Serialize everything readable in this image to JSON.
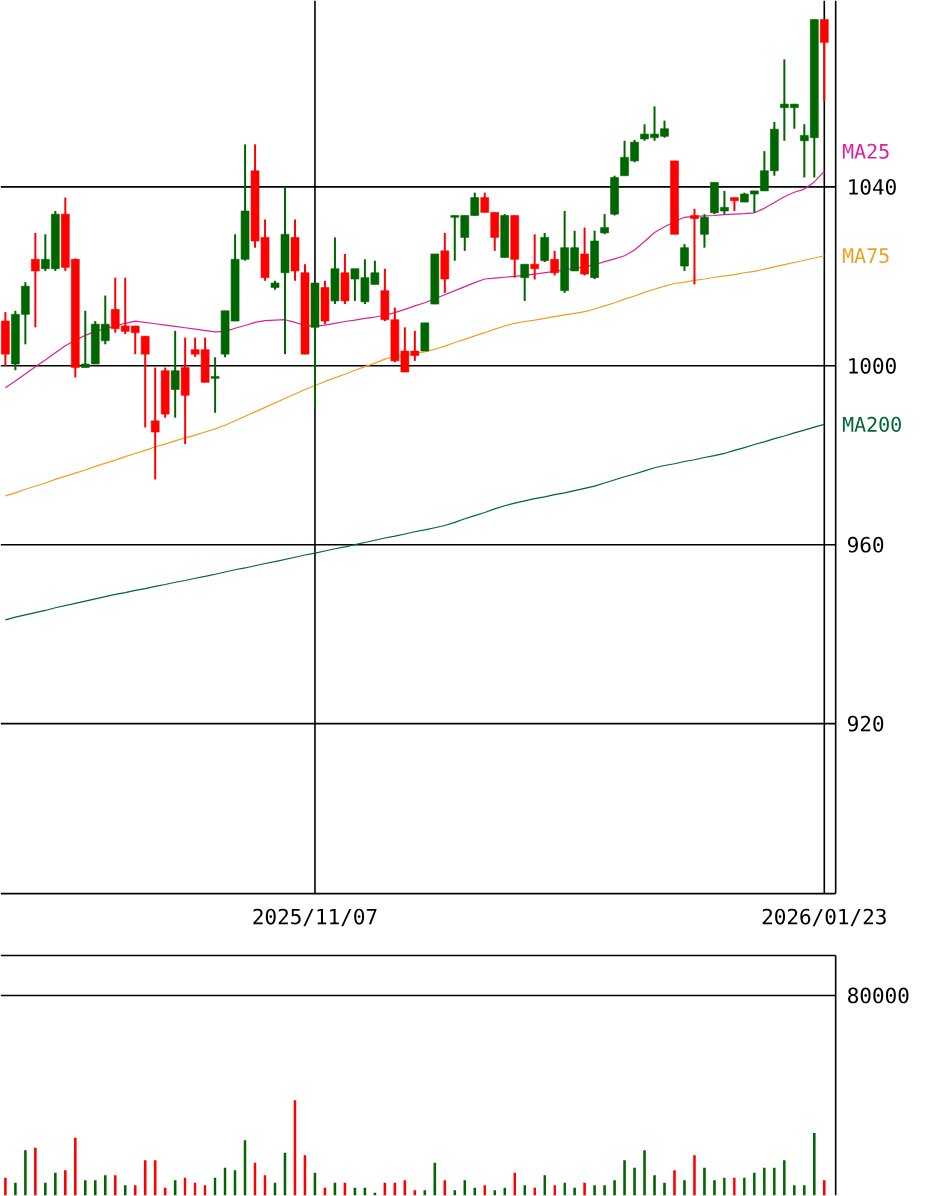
{
  "chart_data": [
    {
      "type": "candlestick",
      "categories": [
        null,
        null,
        null,
        null,
        null,
        null,
        null,
        null,
        null,
        null,
        null,
        null,
        null,
        null,
        null,
        null,
        null,
        null,
        null,
        null,
        null,
        null,
        null,
        null,
        null,
        null,
        null,
        null,
        null,
        null,
        null,
        "2025/11/07",
        null,
        null,
        null,
        null,
        null,
        null,
        null,
        null,
        null,
        null,
        null,
        null,
        null,
        null,
        null,
        null,
        null,
        null,
        null,
        null,
        null,
        null,
        null,
        null,
        null,
        null,
        null,
        null,
        null,
        null,
        null,
        null,
        null,
        null,
        null,
        null,
        null,
        null,
        null,
        null,
        null,
        null,
        null,
        null,
        null,
        null,
        null,
        null,
        null,
        null,
        "2026/01/23"
      ],
      "ohlc": [
        [
          1010,
          1012,
          1000,
          1002.6
        ],
        [
          1000.4,
          1012.3,
          999,
          1011.5
        ],
        [
          1011.5,
          1018.7,
          1004.8,
          1017.8
        ],
        [
          1023.8,
          1029.7,
          1008.6,
          1021.2
        ],
        [
          1021.7,
          1029.4,
          1021.2,
          1023.8
        ],
        [
          1021.7,
          1034.6,
          1021.2,
          1033.9
        ],
        [
          1033.9,
          1037.6,
          1021.2,
          1022
        ],
        [
          1023.8,
          1024,
          997.4,
          999.6
        ],
        [
          999.6,
          1012.3,
          999.6,
          1000.4
        ],
        [
          1000.4,
          1010,
          1000.4,
          1009.3
        ],
        [
          1005.6,
          1015.7,
          1004.8,
          1009.3
        ],
        [
          1012.6,
          1019.7,
          1007.4,
          1008.3
        ],
        [
          1008.9,
          1019.7,
          1007.1,
          1007.7
        ],
        [
          1008.9,
          1008.9,
          1002.6,
          1007.4
        ],
        [
          1006.6,
          1006.6,
          986.2,
          1002.6
        ],
        [
          987.7,
          999.6,
          974.6,
          985.2
        ],
        [
          998.9,
          999.6,
          988.4,
          989.2
        ],
        [
          994.7,
          1007.8,
          988.4,
          998.9
        ],
        [
          999.6,
          1006.3,
          982.5,
          993.4
        ],
        [
          1003.6,
          1006.3,
          1002,
          1002.6
        ],
        [
          1003.6,
          1006.3,
          996.3,
          996.3
        ],
        [
          997.2,
          1001.9,
          989.5,
          997.6
        ],
        [
          1002.6,
          1012.3,
          1001.9,
          1012.3
        ],
        [
          1010,
          1029.4,
          1010,
          1023.8
        ],
        [
          1023.8,
          1049.5,
          1023.5,
          1034.6
        ],
        [
          1043.6,
          1049.5,
          1026.4,
          1027.9
        ],
        [
          1028.7,
          1032.7,
          1019,
          1019.7
        ],
        [
          1017.5,
          1019,
          1017,
          1018.5
        ],
        [
          1020.8,
          1039.9,
          1002.6,
          1029.4
        ],
        [
          1028.7,
          1032.7,
          1019,
          1021.2
        ],
        [
          1020.8,
          1022.7,
          1002.6,
          1002.6
        ],
        [
          1008.6,
          1018.5,
          990.7,
          1018.5
        ],
        [
          1017.5,
          1019,
          1009.3,
          1010
        ],
        [
          1014.5,
          1028.7,
          1013.8,
          1021.7
        ],
        [
          1020.8,
          1025,
          1013.8,
          1014.5
        ],
        [
          1019.4,
          1021.7,
          1014.5,
          1021.7
        ],
        [
          1014.3,
          1023.8,
          1013.8,
          1019.7
        ],
        [
          1018.2,
          1023.5,
          1018.2,
          1020.8
        ],
        [
          1016.8,
          1021.7,
          1010,
          1010.3
        ],
        [
          1010.3,
          1013,
          1000.8,
          1001.1
        ],
        [
          1003.3,
          1008.6,
          998.6,
          998.6
        ],
        [
          1003.3,
          1007.8,
          1001.1,
          1002.3
        ],
        [
          1003.3,
          1009.6,
          1003.3,
          1009.6
        ],
        [
          1013.8,
          1025,
          1013.8,
          1025
        ],
        [
          1025.7,
          1029.7,
          1016.3,
          1019.4
        ],
        [
          1033.2,
          1033.6,
          1023.5,
          1033.6
        ],
        [
          1028.7,
          1033.6,
          1025.7,
          1033.6
        ],
        [
          1033.6,
          1038.7,
          1033.6,
          1037.6
        ],
        [
          1037.6,
          1038.7,
          1034.3,
          1034.3
        ],
        [
          1034.3,
          1034.3,
          1025.7,
          1028.7
        ],
        [
          1024.2,
          1033.9,
          1024.2,
          1033.6
        ],
        [
          1033.6,
          1033.6,
          1019.7,
          1023.8
        ],
        [
          1019.7,
          1022.7,
          1014.5,
          1022.7
        ],
        [
          1022.7,
          1029.4,
          1019.3,
          1021.7
        ],
        [
          1023.5,
          1029.7,
          1023.2,
          1028.7
        ],
        [
          1023.8,
          1025.7,
          1020.2,
          1020.8
        ],
        [
          1016.8,
          1034.6,
          1016.3,
          1026.4
        ],
        [
          1021.2,
          1030.2,
          1021.2,
          1026.4
        ],
        [
          1025,
          1030.9,
          1020.2,
          1020.5
        ],
        [
          1019.7,
          1030.2,
          1019.4,
          1027.9
        ],
        [
          1029.7,
          1033.9,
          1029.4,
          1030.9
        ],
        [
          1033.9,
          1042.5,
          1033.6,
          1042.1
        ],
        [
          1042.5,
          1050.3,
          1042.5,
          1046.6
        ],
        [
          1045.8,
          1050.5,
          1045.5,
          1050
        ],
        [
          1050.7,
          1054,
          1050.3,
          1051.8
        ],
        [
          1051,
          1058,
          1050.3,
          1051.8
        ],
        [
          1051.3,
          1054.8,
          1051,
          1053
        ],
        [
          1045.8,
          1045.8,
          1029.4,
          1029.4
        ],
        [
          1022.3,
          1027.2,
          1021.2,
          1026.4
        ],
        [
          1033.6,
          1035.1,
          1018.2,
          1032.9
        ],
        [
          1029.4,
          1033.9,
          1026.4,
          1033.2
        ],
        [
          1034.2,
          1041,
          1033.9,
          1041
        ],
        [
          1034.6,
          1039.1,
          1033.9,
          1035.4
        ],
        [
          1037.6,
          1037.6,
          1034.6,
          1036.9
        ],
        [
          1036.6,
          1038.7,
          1036.6,
          1038.4
        ],
        [
          1038.4,
          1039.1,
          1034.2,
          1039.1
        ],
        [
          1039.1,
          1048,
          1039.1,
          1043.6
        ],
        [
          1043.6,
          1054.5,
          1042.5,
          1052.9
        ],
        [
          1057.7,
          1068.5,
          1050.3,
          1058.5
        ],
        [
          1057.7,
          1058.5,
          1053,
          1058.5
        ],
        [
          1050.3,
          1054,
          1042.1,
          1051.5
        ],
        [
          1051,
          1077.4,
          1042.1,
          1077.4
        ],
        [
          1077.4,
          1077.4,
          1059.2,
          1072.3
        ]
      ],
      "colors": [
        "#ff0000",
        "#006600",
        "#006600",
        "#ff0000",
        "#006600",
        "#006600",
        "#ff0000",
        "#ff0000",
        "#006600",
        "#006600",
        "#006600",
        "#ff0000",
        "#ff0000",
        "#ff0000",
        "#ff0000",
        "#ff0000",
        "#ff0000",
        "#006600",
        "#ff0000",
        "#ff0000",
        "#ff0000",
        "#006600",
        "#006600",
        "#006600",
        "#006600",
        "#ff0000",
        "#ff0000",
        "#006600",
        "#006600",
        "#ff0000",
        "#ff0000",
        "#006600",
        "#ff0000",
        "#006600",
        "#ff0000",
        "#006600",
        "#006600",
        "#006600",
        "#ff0000",
        "#ff0000",
        "#ff0000",
        "#ff0000",
        "#006600",
        "#006600",
        "#ff0000",
        "#006600",
        "#006600",
        "#006600",
        "#ff0000",
        "#ff0000",
        "#006600",
        "#ff0000",
        "#006600",
        "#ff0000",
        "#006600",
        "#ff0000",
        "#006600",
        "#006600",
        "#ff0000",
        "#006600",
        "#006600",
        "#006600",
        "#006600",
        "#006600",
        "#006600",
        "#006600",
        "#006600",
        "#ff0000",
        "#006600",
        "#ff0000",
        "#006600",
        "#006600",
        "#006600",
        "#ff0000",
        "#006600",
        "#006600",
        "#006600",
        "#006600",
        "#006600",
        "#006600",
        "#006600",
        "#006600",
        "#ff0000"
      ],
      "series": [
        {
          "name": "MA25",
          "type": "line",
          "color": "#dd2299",
          "values": [
            995.1,
            996.6,
            998.2,
            999.8,
            1001.3,
            1002.9,
            1004.5,
            1005.7,
            1006.8,
            1007.7,
            1008.3,
            1008.9,
            1009.5,
            1010,
            1009.7,
            1009.4,
            1009.1,
            1008.8,
            1008.5,
            1008.2,
            1007.9,
            1007.6,
            1007.7,
            1008.4,
            1009,
            1009.7,
            1010.1,
            1010.2,
            1010.3,
            1009.7,
            1009,
            1008.8,
            1009.1,
            1009.5,
            1009.9,
            1010.2,
            1010.6,
            1010.9,
            1011.3,
            1011.9,
            1012.6,
            1013.4,
            1014.1,
            1015,
            1015.9,
            1016.8,
            1017.7,
            1018.6,
            1019.4,
            1019.6,
            1019.8,
            1020,
            1020.2,
            1020.5,
            1020.8,
            1021.1,
            1021.4,
            1021.8,
            1022.1,
            1022.6,
            1023.3,
            1023.9,
            1024.6,
            1025.9,
            1027.8,
            1029.8,
            1031.1,
            1032.2,
            1033.2,
            1033.4,
            1033.5,
            1033.6,
            1033.8,
            1033.9,
            1034,
            1034.2,
            1035.2,
            1036.5,
            1037.8,
            1038.8,
            1039.5,
            1041.1,
            1043.5
          ]
        },
        {
          "name": "MA75",
          "type": "line",
          "color": "#f0a020",
          "values": [
            970.9,
            971.6,
            972.4,
            973.1,
            973.8,
            974.6,
            975.3,
            976,
            976.7,
            977.5,
            978.2,
            978.9,
            979.7,
            980.4,
            981.1,
            981.9,
            982.5,
            983.2,
            983.9,
            984.5,
            985.2,
            985.9,
            986.7,
            987.7,
            988.7,
            989.7,
            990.7,
            991.7,
            992.7,
            993.7,
            994.7,
            995.6,
            996.5,
            997.3,
            998.1,
            999,
            999.8,
            1000.6,
            1001.5,
            1002.1,
            1002.4,
            1002.8,
            1003.1,
            1003.7,
            1004.4,
            1005.2,
            1005.9,
            1006.7,
            1007.4,
            1008.2,
            1008.9,
            1009.5,
            1009.9,
            1010.2,
            1010.6,
            1011,
            1011.4,
            1011.7,
            1012.1,
            1012.7,
            1013.4,
            1014.1,
            1014.9,
            1015.6,
            1016.4,
            1017.1,
            1017.8,
            1018.4,
            1018.7,
            1019.1,
            1019.4,
            1019.8,
            1020.1,
            1020.4,
            1020.8,
            1021.1,
            1021.6,
            1022.1,
            1022.6,
            1023.1,
            1023.6,
            1024.1,
            1024.6
          ]
        },
        {
          "name": "MA200",
          "type": "line",
          "color": "#006633",
          "values": [
            943.2,
            943.8,
            944.3,
            944.8,
            945.3,
            945.9,
            946.4,
            946.9,
            947.4,
            947.9,
            948.4,
            948.9,
            949.3,
            949.8,
            950.2,
            950.7,
            951.1,
            951.6,
            952,
            952.5,
            952.9,
            953.4,
            953.9,
            954.4,
            954.8,
            955.3,
            955.8,
            956.2,
            956.7,
            957.2,
            957.7,
            958.1,
            958.6,
            959.1,
            959.5,
            960,
            960.5,
            961,
            961.5,
            961.9,
            962.4,
            962.9,
            963.3,
            963.8,
            964.3,
            965,
            965.8,
            966.5,
            967.2,
            968,
            968.7,
            969.3,
            969.8,
            970.3,
            970.7,
            971.2,
            971.6,
            972.1,
            972.6,
            973.1,
            973.8,
            974.5,
            975.2,
            975.8,
            976.5,
            977.2,
            977.7,
            978.1,
            978.6,
            979,
            979.5,
            979.9,
            980.4,
            981.1,
            981.7,
            982.4,
            983,
            983.7,
            984.3,
            985,
            985.6,
            986.3,
            986.9
          ]
        }
      ],
      "ylim": [
        882,
        1081.6
      ],
      "yticks": [
        920,
        960,
        1000,
        1040
      ],
      "grid": true,
      "marker": "none",
      "line_style": "solid"
    },
    {
      "type": "bar",
      "categories": [
        null,
        null,
        null,
        null,
        null,
        null,
        null,
        null,
        null,
        null,
        null,
        null,
        null,
        null,
        null,
        null,
        null,
        null,
        null,
        null,
        null,
        null,
        null,
        null,
        null,
        null,
        null,
        null,
        null,
        null,
        null,
        "2025/11/07",
        null,
        null,
        null,
        null,
        null,
        null,
        null,
        null,
        null,
        null,
        null,
        null,
        null,
        null,
        null,
        null,
        null,
        null,
        null,
        null,
        null,
        null,
        null,
        null,
        null,
        null,
        null,
        null,
        null,
        null,
        null,
        null,
        null,
        null,
        null,
        null,
        null,
        null,
        null,
        null,
        null,
        null,
        null,
        null,
        null,
        null,
        null,
        null,
        null,
        null,
        "2026/01/23"
      ],
      "values": [
        7000,
        5000,
        18000,
        19000,
        5000,
        9000,
        10000,
        23000,
        6000,
        6000,
        8000,
        8000,
        4000,
        4000,
        14000,
        14000,
        3000,
        6000,
        7000,
        5000,
        4000,
        7000,
        11000,
        10000,
        22000,
        13000,
        8000,
        5000,
        17000,
        38000,
        16000,
        9000,
        3000,
        5000,
        5000,
        3000,
        3000,
        1000,
        5000,
        5000,
        6000,
        2000,
        2000,
        13000,
        6000,
        2000,
        6000,
        3000,
        4000,
        2000,
        3000,
        9000,
        4000,
        3000,
        8000,
        4000,
        5000,
        3000,
        5000,
        4000,
        4000,
        6000,
        14000,
        11000,
        18000,
        8000,
        5000,
        10000,
        6000,
        16000,
        11000,
        6000,
        7000,
        7000,
        7000,
        9000,
        11000,
        11000,
        14000,
        4000,
        4000,
        25000,
        6000
      ],
      "colors": [
        "#ff0000",
        "#006600",
        "#006600",
        "#ff0000",
        "#006600",
        "#006600",
        "#ff0000",
        "#ff0000",
        "#006600",
        "#006600",
        "#006600",
        "#ff0000",
        "#006600",
        "#ff0000",
        "#ff0000",
        "#ff0000",
        "#ff0000",
        "#006600",
        "#ff0000",
        "#ff0000",
        "#ff0000",
        "#006600",
        "#006600",
        "#006600",
        "#006600",
        "#ff0000",
        "#ff0000",
        "#006600",
        "#006600",
        "#ff0000",
        "#ff0000",
        "#006600",
        "#ff0000",
        "#006600",
        "#ff0000",
        "#006600",
        "#006600",
        "#006600",
        "#ff0000",
        "#ff0000",
        "#ff0000",
        "#ff0000",
        "#006600",
        "#006600",
        "#ff0000",
        "#006600",
        "#006600",
        "#006600",
        "#ff0000",
        "#006600",
        "#006600",
        "#ff0000",
        "#006600",
        "#ff0000",
        "#006600",
        "#ff0000",
        "#006600",
        "#006600",
        "#ff0000",
        "#006600",
        "#006600",
        "#006600",
        "#006600",
        "#006600",
        "#006600",
        "#006600",
        "#006600",
        "#ff0000",
        "#006600",
        "#ff0000",
        "#006600",
        "#006600",
        "#006600",
        "#ff0000",
        "#006600",
        "#006600",
        "#006600",
        "#006600",
        "#006600",
        "#006600",
        "#006600",
        "#006600",
        "#ff0000"
      ],
      "ylim": [
        0,
        96000
      ],
      "yticks": [
        80000
      ],
      "grid": "y",
      "tick_labels": "y"
    }
  ]
}
